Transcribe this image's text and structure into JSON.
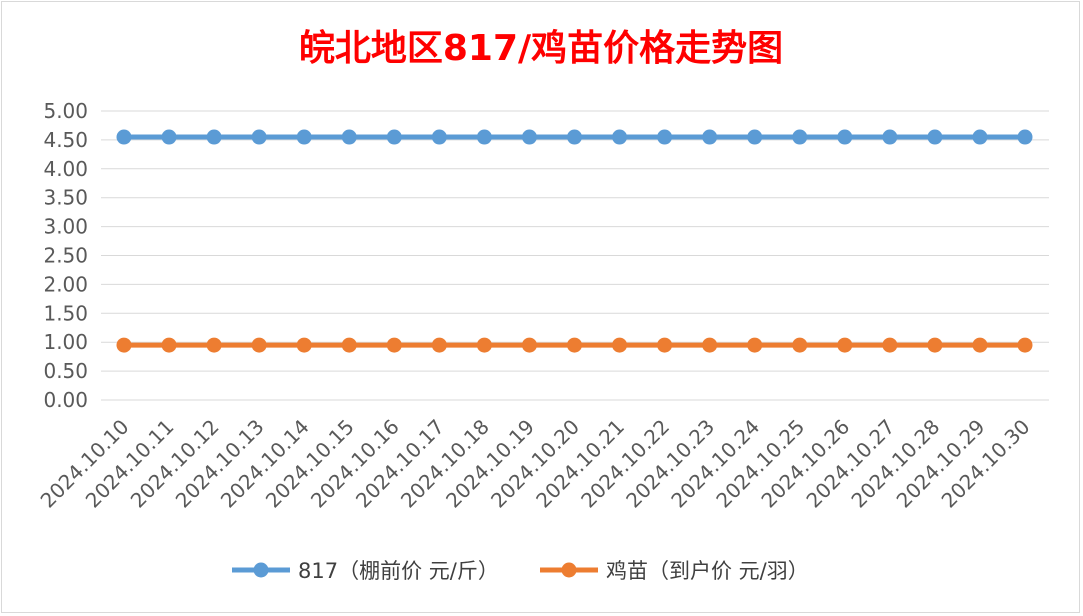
{
  "chart_data": {
    "type": "line",
    "title": "皖北地区817/鸡苗价格走势图",
    "xlabel": "",
    "ylabel": "",
    "categories": [
      "2024.10.10",
      "2024.10.11",
      "2024.10.12",
      "2024.10.13",
      "2024.10.14",
      "2024.10.15",
      "2024.10.16",
      "2024.10.17",
      "2024.10.18",
      "2024.10.19",
      "2024.10.20",
      "2024.10.21",
      "2024.10.22",
      "2024.10.23",
      "2024.10.24",
      "2024.10.25",
      "2024.10.26",
      "2024.10.27",
      "2024.10.28",
      "2024.10.29",
      "2024.10.30"
    ],
    "y_ticks": [
      "0.00",
      "0.50",
      "1.00",
      "1.50",
      "2.00",
      "2.50",
      "3.00",
      "3.50",
      "4.00",
      "4.50",
      "5.00"
    ],
    "ylim": [
      0,
      5
    ],
    "grid": true,
    "legend_position": "bottom",
    "series": [
      {
        "name": "817（棚前价 元/斤）",
        "color": "#5b9bd5",
        "values": [
          4.55,
          4.55,
          4.55,
          4.55,
          4.55,
          4.55,
          4.55,
          4.55,
          4.55,
          4.55,
          4.55,
          4.55,
          4.55,
          4.55,
          4.55,
          4.55,
          4.55,
          4.55,
          4.55,
          4.55,
          4.55
        ]
      },
      {
        "name": "鸡苗（到户价 元/羽）",
        "color": "#ed7d31",
        "values": [
          0.95,
          0.95,
          0.95,
          0.95,
          0.95,
          0.95,
          0.95,
          0.95,
          0.95,
          0.95,
          0.95,
          0.95,
          0.95,
          0.95,
          0.95,
          0.95,
          0.95,
          0.95,
          0.95,
          0.95,
          0.95
        ]
      }
    ]
  }
}
